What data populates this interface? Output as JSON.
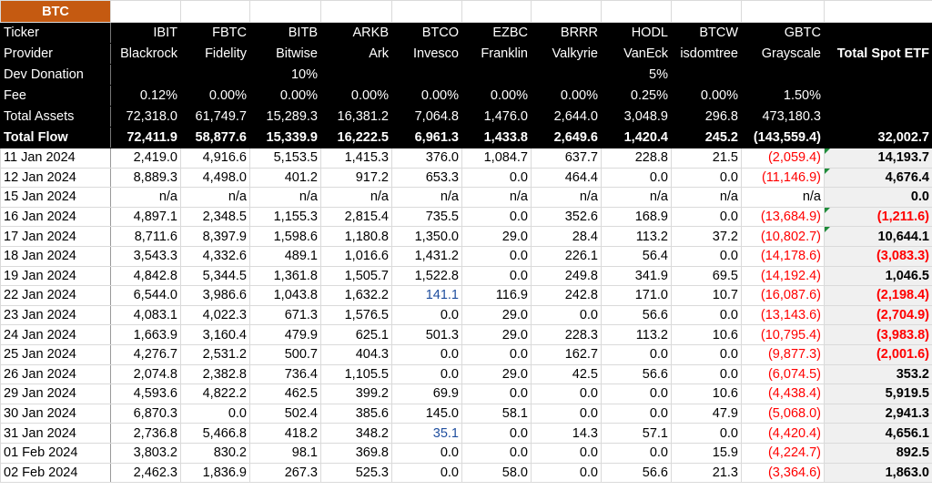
{
  "sheet": {
    "title": "BTC",
    "header_rows": [
      {
        "label": "Ticker",
        "values": [
          "IBIT",
          "FBTC",
          "BITB",
          "ARKB",
          "BTCO",
          "EZBC",
          "BRRR",
          "HODL",
          "BTCW",
          "GBTC",
          ""
        ]
      },
      {
        "label": "Provider",
        "values": [
          "Blackrock",
          "Fidelity",
          "Bitwise",
          "Ark",
          "Invesco",
          "Franklin",
          "Valkyrie",
          "VanEck",
          "isdomtree",
          "Grayscale",
          "Total Spot ETF"
        ]
      },
      {
        "label": "Dev Donation",
        "values": [
          "",
          "",
          "10%",
          "",
          "",
          "",
          "",
          "5%",
          "",
          "",
          ""
        ]
      },
      {
        "label": "Fee",
        "values": [
          "0.12%",
          "0.00%",
          "0.00%",
          "0.00%",
          "0.00%",
          "0.00%",
          "0.00%",
          "0.25%",
          "0.00%",
          "1.50%",
          ""
        ]
      },
      {
        "label": "Total Assets",
        "values": [
          "72,318.0",
          "61,749.7",
          "15,289.3",
          "16,381.2",
          "7,064.8",
          "1,476.0",
          "2,644.0",
          "3,048.9",
          "296.8",
          "473,180.3",
          ""
        ]
      },
      {
        "label": "Total Flow",
        "values": [
          "72,411.9",
          "58,877.6",
          "15,339.9",
          "16,222.5",
          "6,961.3",
          "1,433.8",
          "2,649.6",
          "1,420.4",
          "245.2",
          "(143,559.4)",
          "32,002.7"
        ]
      }
    ],
    "rows": [
      {
        "date": "11 Jan 2024",
        "values": [
          "2,419.0",
          "4,916.6",
          "5,153.5",
          "1,415.3",
          "376.0",
          "1,084.7",
          "637.7",
          "228.8",
          "21.5",
          "(2,059.4)",
          "14,193.7"
        ],
        "flag": true
      },
      {
        "date": "12 Jan 2024",
        "values": [
          "8,889.3",
          "4,498.0",
          "401.2",
          "917.2",
          "653.3",
          "0.0",
          "464.4",
          "0.0",
          "0.0",
          "(11,146.9)",
          "4,676.4"
        ],
        "flag": true
      },
      {
        "date": "15 Jan 2024",
        "values": [
          "n/a",
          "n/a",
          "n/a",
          "n/a",
          "n/a",
          "n/a",
          "n/a",
          "n/a",
          "n/a",
          "n/a",
          "0.0"
        ]
      },
      {
        "date": "16 Jan 2024",
        "values": [
          "4,897.1",
          "2,348.5",
          "1,155.3",
          "2,815.4",
          "735.5",
          "0.0",
          "352.6",
          "168.9",
          "0.0",
          "(13,684.9)",
          "(1,211.6)"
        ],
        "flag": true
      },
      {
        "date": "17 Jan 2024",
        "values": [
          "8,711.6",
          "8,397.9",
          "1,598.6",
          "1,180.8",
          "1,350.0",
          "29.0",
          "28.4",
          "113.2",
          "37.2",
          "(10,802.7)",
          "10,644.1"
        ],
        "flag": true
      },
      {
        "date": "18 Jan 2024",
        "values": [
          "3,543.3",
          "4,332.6",
          "489.1",
          "1,016.6",
          "1,431.2",
          "0.0",
          "226.1",
          "56.4",
          "0.0",
          "(14,178.6)",
          "(3,083.3)"
        ]
      },
      {
        "date": "19 Jan 2024",
        "values": [
          "4,842.8",
          "5,344.5",
          "1,361.8",
          "1,505.7",
          "1,522.8",
          "0.0",
          "249.8",
          "341.9",
          "69.5",
          "(14,192.4)",
          "1,046.5"
        ]
      },
      {
        "date": "22 Jan 2024",
        "values": [
          "6,544.0",
          "3,986.6",
          "1,043.8",
          "1,632.2",
          "141.1",
          "116.9",
          "242.8",
          "171.0",
          "10.7",
          "(16,087.6)",
          "(2,198.4)"
        ],
        "blue": 4
      },
      {
        "date": "23 Jan 2024",
        "values": [
          "4,083.1",
          "4,022.3",
          "671.3",
          "1,576.5",
          "0.0",
          "29.0",
          "0.0",
          "56.6",
          "0.0",
          "(13,143.6)",
          "(2,704.9)"
        ]
      },
      {
        "date": "24 Jan 2024",
        "values": [
          "1,663.9",
          "3,160.4",
          "479.9",
          "625.1",
          "501.3",
          "29.0",
          "228.3",
          "113.2",
          "10.6",
          "(10,795.4)",
          "(3,983.8)"
        ]
      },
      {
        "date": "25 Jan 2024",
        "values": [
          "4,276.7",
          "2,531.2",
          "500.7",
          "404.3",
          "0.0",
          "0.0",
          "162.7",
          "0.0",
          "0.0",
          "(9,877.3)",
          "(2,001.6)"
        ]
      },
      {
        "date": "26 Jan 2024",
        "values": [
          "2,074.8",
          "2,382.8",
          "736.4",
          "1,105.5",
          "0.0",
          "29.0",
          "42.5",
          "56.6",
          "0.0",
          "(6,074.5)",
          "353.2"
        ]
      },
      {
        "date": "29 Jan 2024",
        "values": [
          "4,593.6",
          "4,822.2",
          "462.5",
          "399.2",
          "69.9",
          "0.0",
          "0.0",
          "0.0",
          "10.6",
          "(4,438.4)",
          "5,919.5"
        ]
      },
      {
        "date": "30 Jan 2024",
        "values": [
          "6,870.3",
          "0.0",
          "502.4",
          "385.6",
          "145.0",
          "58.1",
          "0.0",
          "0.0",
          "47.9",
          "(5,068.0)",
          "2,941.3"
        ]
      },
      {
        "date": "31 Jan 2024",
        "values": [
          "2,736.8",
          "5,466.8",
          "418.2",
          "348.2",
          "35.1",
          "0.0",
          "14.3",
          "57.1",
          "0.0",
          "(4,420.4)",
          "4,656.1"
        ],
        "blue": 4
      },
      {
        "date": "01 Feb 2024",
        "values": [
          "3,803.2",
          "830.2",
          "98.1",
          "369.8",
          "0.0",
          "0.0",
          "0.0",
          "0.0",
          "15.9",
          "(4,224.7)",
          "892.5"
        ]
      },
      {
        "date": "02 Feb 2024",
        "values": [
          "2,462.3",
          "1,836.9",
          "267.3",
          "525.3",
          "0.0",
          "58.0",
          "0.0",
          "56.6",
          "21.3",
          "(3,364.6)",
          "1,863.0"
        ]
      }
    ]
  },
  "colors": {
    "title_bg": "#c55a11",
    "header_bg": "#000000",
    "negative": "#ff0000",
    "total_bg": "#f0f0f0",
    "note_marker": "#1e8c3a"
  }
}
